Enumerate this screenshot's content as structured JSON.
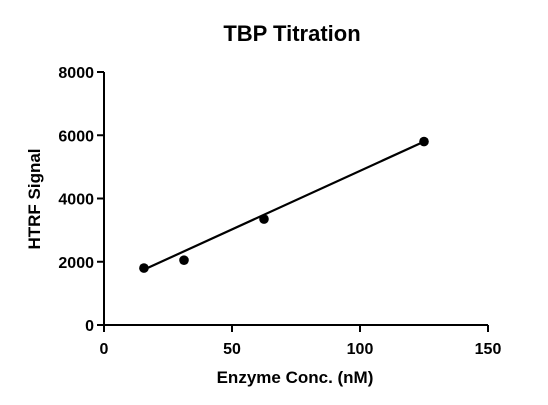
{
  "chart_data": {
    "type": "scatter",
    "title": "TBP Titration",
    "xlabel": "Enzyme Conc. (nM)",
    "ylabel": "HTRF Signal",
    "xlim": [
      0,
      150
    ],
    "ylim": [
      0,
      8000
    ],
    "xticks": [
      0,
      50,
      100,
      150
    ],
    "yticks": [
      0,
      2000,
      4000,
      6000,
      8000
    ],
    "grid": false,
    "legend": "none",
    "series": [
      {
        "points": [
          {
            "x": 15.6,
            "y": 1800
          },
          {
            "x": 31.25,
            "y": 2050
          },
          {
            "x": 62.5,
            "y": 3350
          },
          {
            "x": 125,
            "y": 5800
          }
        ],
        "fit": {
          "type": "linear",
          "x_range": [
            15.6,
            125
          ],
          "y_range": [
            1750,
            5800
          ]
        }
      }
    ]
  }
}
